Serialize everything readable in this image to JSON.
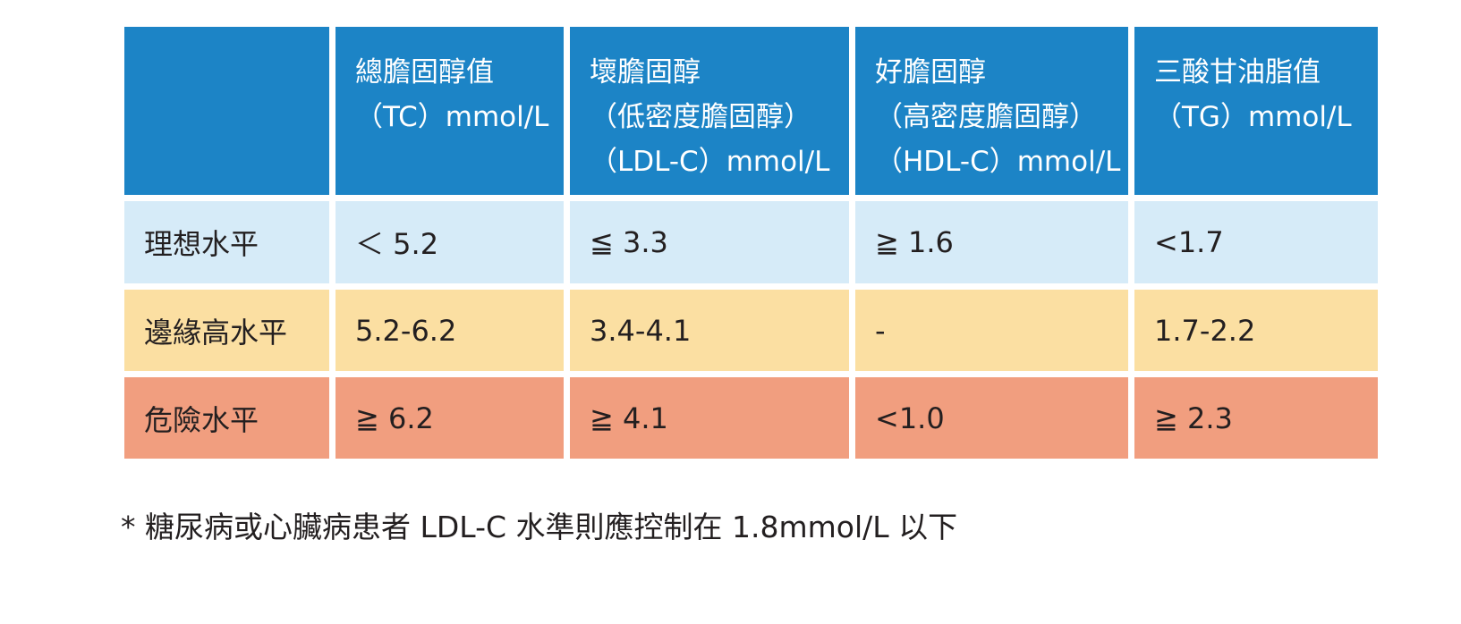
{
  "table": {
    "columns": [
      {
        "lines": []
      },
      {
        "lines": [
          "總膽固醇值",
          "（TC）mmol/L"
        ]
      },
      {
        "lines": [
          "壞膽固醇",
          "（低密度膽固醇）",
          "（LDL-C）mmol/L"
        ]
      },
      {
        "lines": [
          "好膽固醇",
          "（高密度膽固醇）",
          "（HDL-C）mmol/L"
        ]
      },
      {
        "lines": [
          "三酸甘油脂值",
          "（TG）mmol/L"
        ]
      }
    ],
    "rows": [
      {
        "label": "理想水平",
        "values": [
          "＜ 5.2",
          "≦ 3.3",
          "≧ 1.6",
          "<1.7"
        ]
      },
      {
        "label": "邊緣高水平",
        "values": [
          "5.2-6.2",
          "3.4-4.1",
          "-",
          "1.7-2.2"
        ]
      },
      {
        "label": "危險水平",
        "values": [
          "≧ 6.2",
          "≧ 4.1",
          "<1.0",
          "≧ 2.3"
        ]
      }
    ],
    "colors": {
      "header": "#1c84c6",
      "ideal": "#d6ebf8",
      "borderline": "#fbdfa2",
      "danger": "#f19e7f"
    }
  },
  "footnote": "* 糖尿病或心臟病患者 LDL-C 水準則應控制在 1.8mmol/L 以下"
}
